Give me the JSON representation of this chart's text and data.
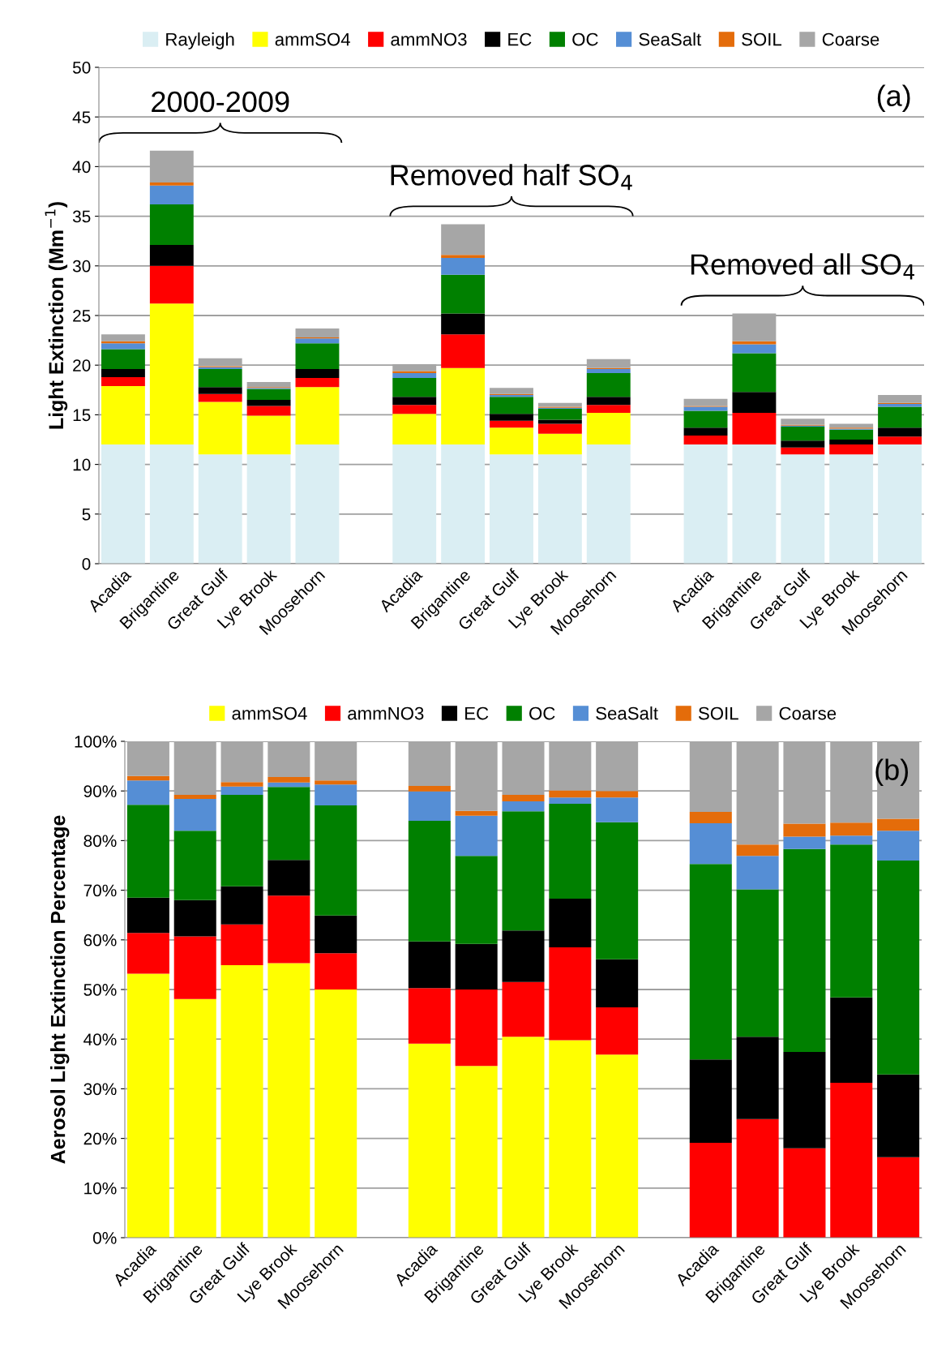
{
  "chart_data": [
    {
      "type": "bar",
      "stacked": true,
      "ylabel": "Light Extinction (Mm$^{−1}$)",
      "categories": [
        "Acadia",
        "Brigantine",
        "Great Gulf",
        "Lye Brook",
        "Moosehorn",
        null,
        "Acadia",
        "Brigantine",
        "Great Gulf",
        "Lye Brook",
        "Moosehorn",
        null,
        "Acadia",
        "Brigantine",
        "Great Gulf",
        "Lye Brook",
        "Moosehorn"
      ],
      "series": [
        {
          "name": "Rayleigh",
          "color": "#daeef3",
          "values": [
            12,
            12,
            11,
            11,
            12,
            null,
            12,
            12,
            11,
            11,
            12,
            null,
            12,
            12,
            11,
            11,
            12
          ]
        },
        {
          "name": "ammSO4",
          "color": "#ffff00",
          "values": [
            5.9,
            14.2,
            5.3,
            3.9,
            5.8,
            null,
            3.1,
            7.7,
            2.7,
            2.1,
            3.2,
            null,
            0,
            0,
            0,
            0,
            0
          ]
        },
        {
          "name": "ammNO3",
          "color": "#ff0000",
          "values": [
            0.9,
            3.8,
            0.8,
            1.0,
            0.9,
            null,
            0.9,
            3.4,
            0.7,
            1.0,
            0.8,
            null,
            0.9,
            3.2,
            0.7,
            1.0,
            0.8
          ]
        },
        {
          "name": "EC",
          "color": "#000000",
          "values": [
            0.8,
            2.1,
            0.7,
            0.6,
            0.9,
            null,
            0.8,
            2.1,
            0.7,
            0.4,
            0.8,
            null,
            0.8,
            2.1,
            0.7,
            0.5,
            0.9
          ]
        },
        {
          "name": "OC",
          "color": "#008000",
          "values": [
            2.0,
            4.1,
            1.8,
            1.1,
            2.6,
            null,
            1.9,
            3.9,
            1.7,
            1.1,
            2.4,
            null,
            1.7,
            3.9,
            1.4,
            1.0,
            2.1
          ]
        },
        {
          "name": "SeaSalt",
          "color": "#558ed5",
          "values": [
            0.6,
            1.9,
            0.2,
            0.1,
            0.5,
            null,
            0.5,
            1.7,
            0.2,
            0.1,
            0.4,
            null,
            0.4,
            0.9,
            0.1,
            0.1,
            0.3
          ]
        },
        {
          "name": "SOIL",
          "color": "#e46c0a",
          "values": [
            0.2,
            0.3,
            0.1,
            0.1,
            0.1,
            null,
            0.2,
            0.3,
            0.1,
            0.1,
            0.1,
            null,
            0.1,
            0.3,
            0.1,
            0.1,
            0.1
          ]
        },
        {
          "name": "Coarse",
          "color": "#a6a6a6",
          "values": [
            0.7,
            3.2,
            0.8,
            0.5,
            0.9,
            null,
            0.7,
            3.1,
            0.6,
            0.4,
            0.9,
            null,
            0.7,
            2.8,
            0.6,
            0.4,
            0.8
          ]
        }
      ],
      "ylim": [
        0,
        50
      ],
      "yticks": [
        0,
        5,
        10,
        15,
        20,
        25,
        30,
        35,
        40,
        45,
        50
      ],
      "grid": "y",
      "legend": "top",
      "annotations": [
        "(a)",
        "2000-2009",
        "Removed half SO$_{4}$",
        "Removed all SO$_{4}$"
      ]
    },
    {
      "type": "bar",
      "stacked": true,
      "ylabel": "Aerosol Light Extinction Percentage",
      "categories": [
        "Acadia",
        "Brigantine",
        "Great Gulf",
        "Lye Brook",
        "Moosehorn",
        null,
        "Acadia",
        "Brigantine",
        "Great Gulf",
        "Lye Brook",
        "Moosehorn",
        null,
        "Acadia",
        "Brigantine",
        "Great Gulf",
        "Lye Brook",
        "Moosehorn"
      ],
      "series": [
        {
          "name": "ammSO4",
          "color": "#ffff00",
          "values": [
            53.2,
            48.1,
            54.9,
            55.3,
            50.0,
            null,
            39.1,
            34.6,
            40.5,
            39.8,
            36.9,
            null,
            0,
            0,
            0,
            0,
            0
          ]
        },
        {
          "name": "ammNO3",
          "color": "#ff0000",
          "values": [
            8.2,
            12.6,
            8.2,
            13.6,
            7.3,
            null,
            11.2,
            15.4,
            11.0,
            18.7,
            9.5,
            null,
            19.1,
            23.9,
            18.0,
            31.2,
            16.2
          ]
        },
        {
          "name": "EC",
          "color": "#000000",
          "values": [
            7.1,
            7.3,
            7.7,
            7.2,
            7.6,
            null,
            9.4,
            9.2,
            10.4,
            9.8,
            9.7,
            null,
            16.8,
            16.6,
            19.4,
            17.2,
            16.7
          ]
        },
        {
          "name": "OC",
          "color": "#008000",
          "values": [
            18.7,
            14.0,
            18.4,
            14.7,
            22.2,
            null,
            24.3,
            17.7,
            24.0,
            19.1,
            27.6,
            null,
            39.4,
            29.7,
            40.9,
            30.8,
            43.1
          ]
        },
        {
          "name": "SeaSalt",
          "color": "#558ed5",
          "values": [
            4.9,
            6.4,
            1.7,
            0.9,
            4.2,
            null,
            5.9,
            8.1,
            2.0,
            1.3,
            5.0,
            null,
            8.2,
            6.7,
            2.5,
            1.8,
            6.0
          ]
        },
        {
          "name": "SOIL",
          "color": "#e46c0a",
          "values": [
            0.9,
            0.8,
            0.9,
            1.1,
            0.8,
            null,
            1.1,
            1.0,
            1.3,
            1.4,
            1.3,
            null,
            2.3,
            2.3,
            2.6,
            2.6,
            2.4
          ]
        },
        {
          "name": "Coarse",
          "color": "#a6a6a6",
          "values": [
            7.0,
            10.8,
            8.2,
            7.2,
            7.9,
            null,
            9.0,
            14.0,
            10.8,
            9.9,
            10.0,
            null,
            14.2,
            20.8,
            16.6,
            16.4,
            15.6
          ]
        }
      ],
      "ylim": [
        0,
        100
      ],
      "yticks": [
        {
          "value": 0,
          "label": "0%"
        },
        {
          "value": 10,
          "label": "10%"
        },
        {
          "value": 20,
          "label": "20%"
        },
        {
          "value": 30,
          "label": "30%"
        },
        {
          "value": 40,
          "label": "40%"
        },
        {
          "value": 50,
          "label": "50%"
        },
        {
          "value": 60,
          "label": "60%"
        },
        {
          "value": 70,
          "label": "70%"
        },
        {
          "value": 80,
          "label": "80%"
        },
        {
          "value": 90,
          "label": "90%"
        },
        {
          "value": 100,
          "label": "100%"
        }
      ],
      "grid": "y",
      "legend": "top",
      "annotations": [
        "(b)"
      ]
    }
  ]
}
